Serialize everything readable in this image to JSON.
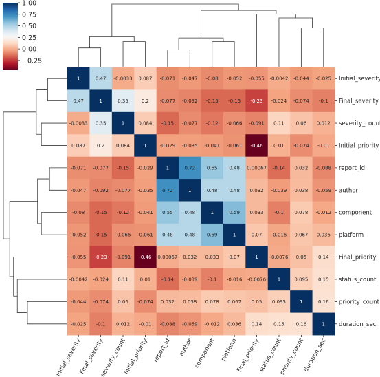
{
  "chart_data": {
    "type": "heatmap",
    "variant": "clustermap",
    "title": "",
    "xlabel": "",
    "ylabel": "",
    "labels": [
      "Initial_severity",
      "Final_severity",
      "severity_count",
      "Initial_priority",
      "report_id",
      "author",
      "component",
      "platform",
      "Final_priority",
      "status_count",
      "priority_count",
      "duration_sec"
    ],
    "values": [
      [
        1,
        0.47,
        -0.0033,
        0.087,
        -0.071,
        -0.047,
        -0.08,
        -0.052,
        -0.055,
        -0.0042,
        -0.044,
        -0.025
      ],
      [
        0.47,
        1,
        0.35,
        0.2,
        -0.077,
        -0.092,
        -0.15,
        -0.15,
        -0.23,
        -0.024,
        -0.074,
        -0.1
      ],
      [
        -0.0033,
        0.35,
        1,
        0.084,
        -0.15,
        -0.077,
        -0.12,
        -0.066,
        -0.091,
        0.11,
        0.06,
        0.012
      ],
      [
        0.087,
        0.2,
        0.084,
        1,
        -0.029,
        -0.035,
        -0.041,
        -0.061,
        -0.46,
        0.01,
        -0.074,
        -0.01
      ],
      [
        -0.071,
        -0.077,
        -0.15,
        -0.029,
        1,
        0.72,
        0.55,
        0.48,
        0.00067,
        -0.14,
        0.032,
        -0.088
      ],
      [
        -0.047,
        -0.092,
        -0.077,
        -0.035,
        0.72,
        1,
        0.48,
        0.48,
        0.032,
        -0.039,
        0.038,
        -0.059
      ],
      [
        -0.08,
        -0.15,
        -0.12,
        -0.041,
        0.55,
        0.48,
        1,
        0.59,
        0.033,
        -0.1,
        0.078,
        -0.012
      ],
      [
        -0.052,
        -0.15,
        -0.066,
        -0.061,
        0.48,
        0.48,
        0.59,
        1,
        0.07,
        -0.016,
        0.067,
        0.036
      ],
      [
        -0.055,
        -0.23,
        -0.091,
        -0.46,
        0.00067,
        0.032,
        0.033,
        0.07,
        1,
        -0.0076,
        0.05,
        0.14
      ],
      [
        -0.0042,
        -0.024,
        0.11,
        0.01,
        -0.14,
        -0.039,
        -0.1,
        -0.016,
        -0.0076,
        1,
        0.095,
        0.15
      ],
      [
        -0.044,
        -0.074,
        0.06,
        -0.074,
        0.032,
        0.038,
        0.078,
        0.067,
        0.05,
        0.095,
        1,
        0.16
      ],
      [
        -0.025,
        -0.1,
        0.012,
        -0.01,
        -0.088,
        -0.059,
        -0.012,
        0.036,
        0.14,
        0.15,
        0.16,
        1
      ]
    ],
    "value_labels": [
      [
        "1",
        "0.47",
        "-0.0033",
        "0.087",
        "-0.071",
        "-0.047",
        "-0.08",
        "-0.052",
        "-0.055",
        "-0.0042",
        "-0.044",
        "-0.025"
      ],
      [
        "0.47",
        "1",
        "0.35",
        "0.2",
        "-0.077",
        "-0.092",
        "-0.15",
        "-0.15",
        "-0.23",
        "-0.024",
        "-0.074",
        "-0.1"
      ],
      [
        "-0.0033",
        "0.35",
        "1",
        "0.084",
        "-0.15",
        "-0.077",
        "-0.12",
        "-0.066",
        "-0.091",
        "0.11",
        "0.06",
        "0.012"
      ],
      [
        "0.087",
        "0.2",
        "0.084",
        "1",
        "-0.029",
        "-0.035",
        "-0.041",
        "-0.061",
        "-0.46",
        "0.01",
        "-0.074",
        "-0.01"
      ],
      [
        "-0.071",
        "-0.077",
        "-0.15",
        "-0.029",
        "1",
        "0.72",
        "0.55",
        "0.48",
        "0.00067",
        "-0.14",
        "0.032",
        "-0.088"
      ],
      [
        "-0.047",
        "-0.092",
        "-0.077",
        "-0.035",
        "0.72",
        "1",
        "0.48",
        "0.48",
        "0.032",
        "-0.039",
        "0.038",
        "-0.059"
      ],
      [
        "-0.08",
        "-0.15",
        "-0.12",
        "-0.041",
        "0.55",
        "0.48",
        "1",
        "0.59",
        "0.033",
        "-0.1",
        "0.078",
        "-0.012"
      ],
      [
        "-0.052",
        "-0.15",
        "-0.066",
        "-0.061",
        "0.48",
        "0.48",
        "0.59",
        "1",
        "0.07",
        "-0.016",
        "0.067",
        "0.036"
      ],
      [
        "-0.055",
        "-0.23",
        "-0.091",
        "-0.46",
        "0.00067",
        "0.032",
        "0.033",
        "0.07",
        "1",
        "-0.0076",
        "0.05",
        "0.14"
      ],
      [
        "-0.0042",
        "-0.024",
        "0.11",
        "0.01",
        "-0.14",
        "-0.039",
        "-0.1",
        "-0.016",
        "-0.0076",
        "1",
        "0.095",
        "0.15"
      ],
      [
        "-0.044",
        "-0.074",
        "0.06",
        "-0.074",
        "0.032",
        "0.038",
        "0.078",
        "0.067",
        "0.05",
        "0.095",
        "1",
        "0.16"
      ],
      [
        "-0.025",
        "-0.1",
        "0.012",
        "-0.01",
        "-0.088",
        "-0.059",
        "-0.012",
        "0.036",
        "0.14",
        "0.15",
        "0.16",
        "1"
      ]
    ],
    "colormap": "RdBu",
    "colormap_stops": [
      "#67001f",
      "#b2182b",
      "#d6604d",
      "#f4a582",
      "#fddbc7",
      "#f7f7f7",
      "#d1e5f0",
      "#92c5de",
      "#4393c3",
      "#2166ac",
      "#053061"
    ],
    "vmin": -0.46,
    "vmax": 1,
    "colorbar": {
      "ticks": [
        1.0,
        0.75,
        0.5,
        0.25,
        0.0,
        -0.25
      ],
      "tick_labels": [
        "1.00",
        "0.75",
        "0.50",
        "0.25",
        "0.00",
        "−0.25"
      ]
    },
    "dendrograms": [
      "top",
      "left"
    ]
  }
}
